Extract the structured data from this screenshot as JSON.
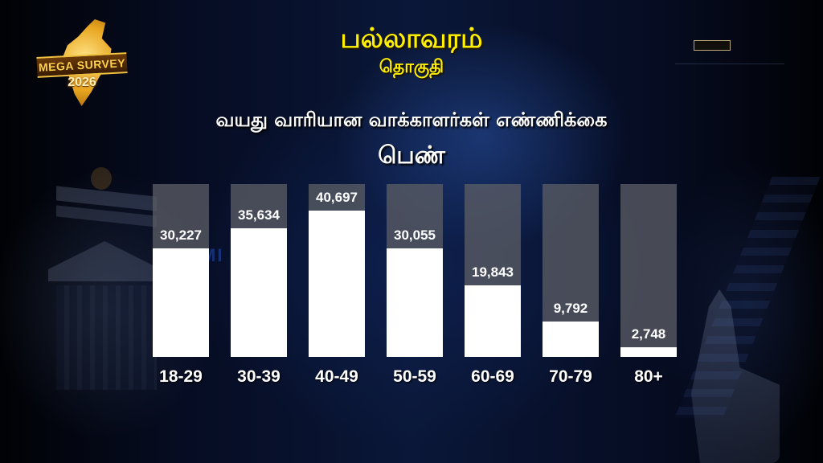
{
  "header": {
    "logo": {
      "banner_text": "MEGA SURVEY",
      "year": "2026"
    },
    "title": "பல்லாவரம்",
    "subtitle": "தொகுதி"
  },
  "watermark": "MI    MI    AM",
  "chart_data": {
    "type": "bar",
    "title": "வயது வாரியான வாக்காளர்கள் எண்ணிக்கை",
    "subtitle": "பெண்",
    "xlabel": "",
    "ylabel": "",
    "categories": [
      "18-29",
      "30-39",
      "40-49",
      "50-59",
      "60-69",
      "70-79",
      "80+"
    ],
    "values": [
      30227,
      35634,
      40697,
      30055,
      19843,
      9792,
      2748
    ],
    "value_labels": [
      "30,227",
      "35,634",
      "40,697",
      "30,055",
      "19,843",
      "9,792",
      "2,748"
    ],
    "ylim": [
      0,
      48000
    ],
    "grid": false,
    "legend": null,
    "colors": {
      "fill": "#ffffff",
      "track": "#5a5c64",
      "title": "#ffef00",
      "text": "#ffffff"
    }
  }
}
